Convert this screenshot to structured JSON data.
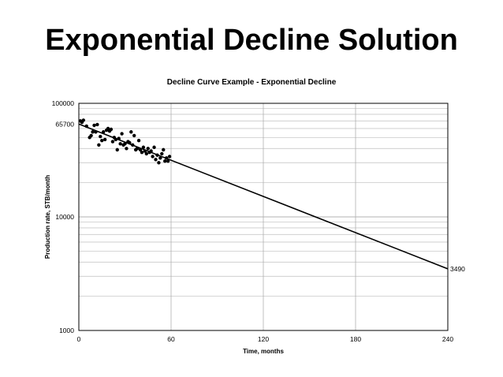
{
  "slide": {
    "title": "Exponential Decline Solution"
  },
  "chart_data": {
    "type": "scatter",
    "title": "Decline Curve Example - Exponential Decline",
    "xlabel": "Time, months",
    "ylabel": "Production rate, STB/month",
    "xlim": [
      0,
      240
    ],
    "ylim": [
      1000,
      100000
    ],
    "yscale": "log",
    "xticks": [
      0,
      60,
      120,
      180,
      240
    ],
    "yticks": [
      1000,
      10000,
      100000
    ],
    "ytick_extra": [
      65700
    ],
    "grid": true,
    "legend": "none",
    "series": [
      {
        "type": "line",
        "x": [
          0,
          240
        ],
        "y": [
          65700,
          3490
        ],
        "end_label": "3490"
      },
      {
        "type": "scatter",
        "x": [
          1,
          2,
          3,
          5,
          7,
          8,
          9,
          10,
          11,
          12,
          13,
          14,
          15,
          16,
          17,
          18,
          19,
          20,
          21,
          22,
          23,
          24,
          25,
          26,
          27,
          28,
          29,
          30,
          31,
          32,
          33,
          34,
          35,
          36,
          37,
          38,
          39,
          40,
          41,
          42,
          43,
          44,
          45,
          46,
          47,
          48,
          49,
          50,
          51,
          52,
          53,
          54,
          55,
          56,
          57,
          58,
          59
        ],
        "y": [
          70000,
          68000,
          71000,
          63000,
          50000,
          52000,
          56000,
          64000,
          56000,
          65000,
          43000,
          51000,
          47000,
          56000,
          48000,
          58000,
          60000,
          57000,
          59000,
          46000,
          50000,
          48000,
          39000,
          49000,
          44000,
          54000,
          43000,
          44000,
          40000,
          46000,
          45000,
          56000,
          43000,
          52000,
          39000,
          40000,
          47000,
          39000,
          37000,
          41000,
          38000,
          36000,
          40000,
          37000,
          38000,
          34000,
          41000,
          32000,
          35000,
          30000,
          33000,
          36000,
          39000,
          31000,
          33000,
          31000,
          34000
        ]
      }
    ]
  }
}
